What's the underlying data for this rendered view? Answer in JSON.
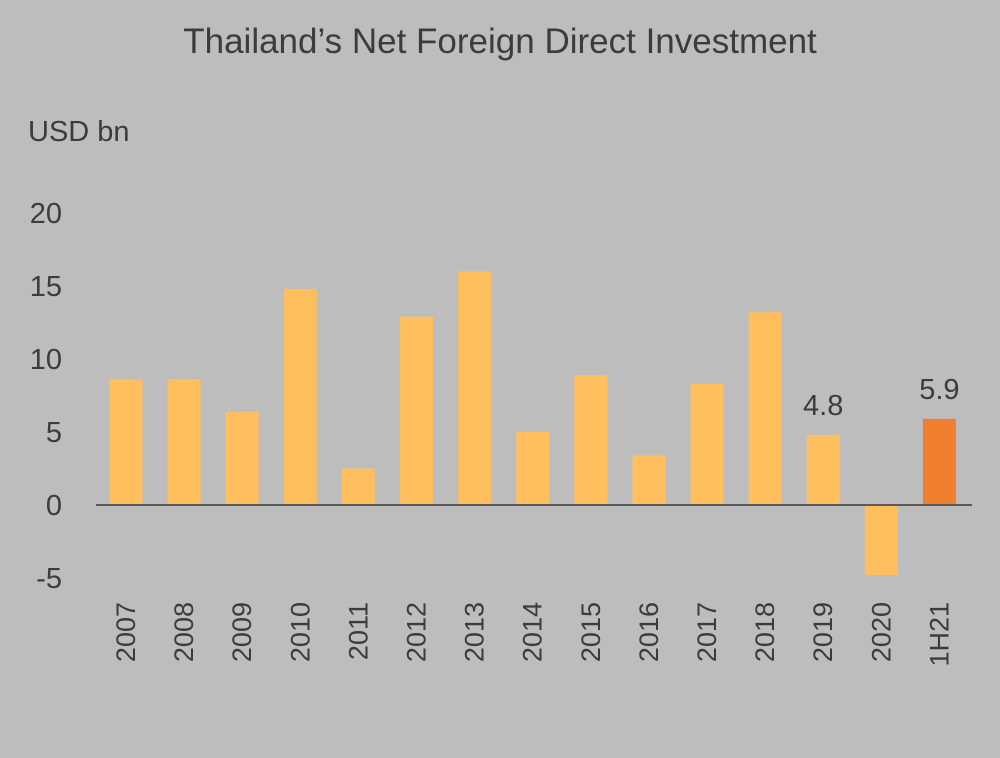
{
  "title": "Thailand’s Net Foreign Direct Investment",
  "colors": {
    "background": "#bdbdbd",
    "bar": "#ffbf5f",
    "highlight": "#ef7f2f",
    "axis": "#5a5a5a"
  },
  "chart_data": {
    "type": "bar",
    "title": "Thailand’s Net Foreign Direct Investment",
    "ylabel": "USD bn",
    "xlabel": "",
    "ylim": [
      -5,
      20
    ],
    "yticks": [
      -5,
      0,
      5,
      10,
      15,
      20
    ],
    "grid": false,
    "categories": [
      "2007",
      "2008",
      "2009",
      "2010",
      "2011",
      "2012",
      "2013",
      "2014",
      "2015",
      "2016",
      "2017",
      "2018",
      "2019",
      "2020",
      "1H21"
    ],
    "values": [
      8.6,
      8.6,
      6.4,
      14.8,
      2.5,
      12.9,
      16.0,
      5.0,
      8.9,
      3.4,
      8.3,
      13.2,
      4.8,
      -4.8,
      5.9
    ],
    "highlight_index": 14,
    "data_labels": [
      {
        "index": 12,
        "text": "4.8"
      },
      {
        "index": 14,
        "text": "5.9"
      }
    ]
  }
}
